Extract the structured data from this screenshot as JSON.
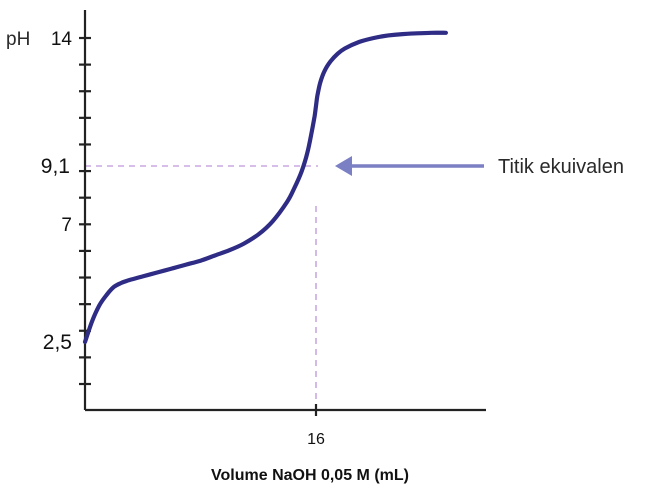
{
  "chart_data": {
    "type": "line",
    "title": "",
    "xlabel": "Volume NaOH 0,05 M (mL)",
    "ylabel": "pH",
    "xlim": [
      0,
      26
    ],
    "ylim": [
      0,
      14.5
    ],
    "x_ticks": [
      {
        "value": 16,
        "label": "16"
      }
    ],
    "y_ticks": [
      {
        "value": 14,
        "label": "14"
      },
      {
        "value": 9.1,
        "label": "9,1"
      },
      {
        "value": 7,
        "label": "7"
      },
      {
        "value": 2.5,
        "label": "2,5"
      }
    ],
    "y_minor_ticks": [
      1,
      2,
      3,
      4,
      5,
      6,
      7,
      8,
      9,
      10,
      11,
      12,
      13,
      14
    ],
    "grid": false,
    "legend": "none",
    "series": [
      {
        "color": "#2e2c84",
        "x": [
          0,
          0.5,
          1,
          1.5,
          2,
          2.5,
          3,
          4,
          5,
          6,
          7,
          8,
          9,
          10,
          11,
          12,
          13,
          14,
          14.5,
          15,
          15.4,
          15.7,
          15.9,
          16,
          16.1,
          16.3,
          16.6,
          17,
          17.5,
          18,
          19,
          20,
          21,
          22,
          23,
          24,
          25
        ],
        "y": [
          2.5,
          3.3,
          3.9,
          4.3,
          4.6,
          4.75,
          4.85,
          5.0,
          5.15,
          5.3,
          5.45,
          5.6,
          5.8,
          6.0,
          6.25,
          6.6,
          7.1,
          7.8,
          8.3,
          8.9,
          9.6,
          10.4,
          11.0,
          11.4,
          11.8,
          12.3,
          12.75,
          13.1,
          13.4,
          13.6,
          13.85,
          14.0,
          14.1,
          14.15,
          14.18,
          14.2,
          14.2
        ]
      }
    ],
    "annotations": [
      {
        "text": "Titik ekuivalen",
        "arrow_to_y": 9.1,
        "arrow_color": "#7b7fc4"
      }
    ],
    "reference_lines": [
      {
        "orientation": "horizontal",
        "value": 9.1,
        "color": "#c9a8e0",
        "style": "dashed"
      },
      {
        "orientation": "vertical",
        "value": 16,
        "color": "#c9a8e0",
        "style": "dashed"
      }
    ],
    "axis_color": "#222222"
  }
}
